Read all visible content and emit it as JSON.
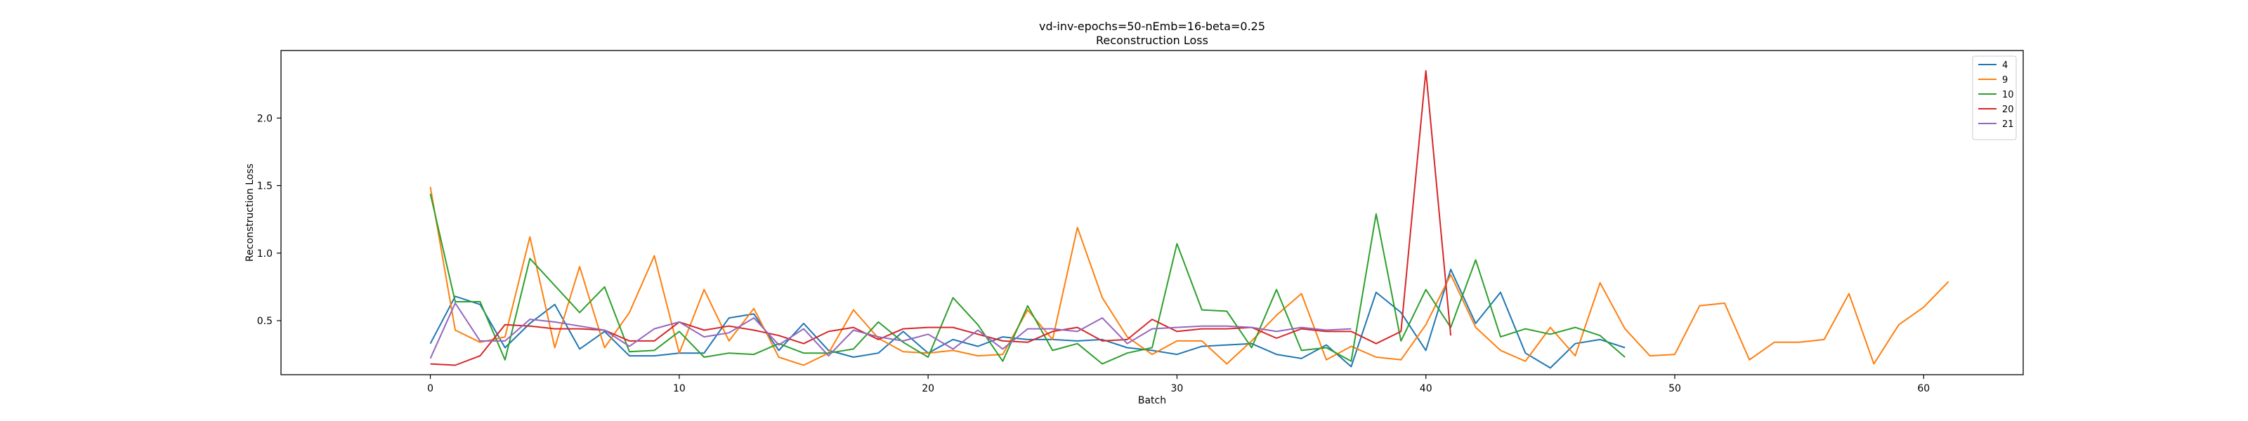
{
  "chart_data": {
    "type": "line",
    "title": "vd-inv-epochs=50-nEmb=16-beta=0.25",
    "subtitle": "Reconstruction Loss",
    "xlabel": "Batch",
    "ylabel": "Reconstruction Loss",
    "xlim": [
      -6,
      64
    ],
    "ylim": [
      0.1,
      2.5
    ],
    "xticks": [
      0,
      10,
      20,
      30,
      40,
      50,
      60
    ],
    "yticks": [
      0.5,
      1.0,
      1.5,
      2.0
    ],
    "ytick_labels": [
      "0.5",
      "1.0",
      "1.5",
      "2.0"
    ],
    "grid": false,
    "legend_position": "top-right",
    "series": [
      {
        "name": "4",
        "color": "#1f77b4",
        "values": [
          0.33,
          0.68,
          0.62,
          0.3,
          0.48,
          0.62,
          0.29,
          0.42,
          0.24,
          0.24,
          0.26,
          0.26,
          0.52,
          0.55,
          0.28,
          0.48,
          0.28,
          0.23,
          0.26,
          0.42,
          0.26,
          0.36,
          0.31,
          0.38,
          0.36,
          0.36,
          0.35,
          0.36,
          0.3,
          0.28,
          0.25,
          0.31,
          0.32,
          0.33,
          0.25,
          0.22,
          0.32,
          0.16,
          0.71,
          0.56,
          0.28,
          0.88,
          0.48,
          0.71,
          0.26,
          0.15,
          0.33,
          0.36,
          0.3
        ]
      },
      {
        "name": "9",
        "color": "#ff7f0e",
        "values": [
          1.49,
          0.43,
          0.34,
          0.38,
          1.12,
          0.3,
          0.9,
          0.3,
          0.56,
          0.98,
          0.26,
          0.73,
          0.35,
          0.59,
          0.23,
          0.17,
          0.26,
          0.58,
          0.37,
          0.27,
          0.26,
          0.28,
          0.24,
          0.25,
          0.58,
          0.36,
          1.19,
          0.67,
          0.38,
          0.25,
          0.35,
          0.35,
          0.18,
          0.35,
          0.54,
          0.7,
          0.21,
          0.31,
          0.23,
          0.21,
          0.47,
          0.84,
          0.45,
          0.28,
          0.2,
          0.45,
          0.24,
          0.78,
          0.44,
          0.24,
          0.25,
          0.61,
          0.63,
          0.21,
          0.34,
          0.34,
          0.36,
          0.7,
          0.18,
          0.47,
          0.6,
          0.79
        ]
      },
      {
        "name": "10",
        "color": "#2ca02c",
        "values": [
          1.44,
          0.64,
          0.64,
          0.21,
          0.96,
          0.76,
          0.56,
          0.75,
          0.27,
          0.28,
          0.42,
          0.23,
          0.26,
          0.25,
          0.33,
          0.26,
          0.26,
          0.29,
          0.49,
          0.34,
          0.23,
          0.67,
          0.47,
          0.2,
          0.61,
          0.28,
          0.33,
          0.18,
          0.26,
          0.3,
          1.07,
          0.58,
          0.57,
          0.3,
          0.73,
          0.28,
          0.3,
          0.2,
          1.29,
          0.35,
          0.73,
          0.45,
          0.95,
          0.38,
          0.44,
          0.4,
          0.45,
          0.39,
          0.23
        ]
      },
      {
        "name": "20",
        "color": "#d62728",
        "values": [
          0.18,
          0.17,
          0.24,
          0.47,
          0.46,
          0.44,
          0.44,
          0.43,
          0.35,
          0.35,
          0.49,
          0.43,
          0.46,
          0.43,
          0.39,
          0.33,
          0.42,
          0.45,
          0.36,
          0.44,
          0.45,
          0.45,
          0.4,
          0.35,
          0.34,
          0.42,
          0.45,
          0.35,
          0.36,
          0.51,
          0.42,
          0.44,
          0.44,
          0.45,
          0.37,
          0.44,
          0.42,
          0.42,
          0.33,
          0.42,
          2.35,
          0.39
        ]
      },
      {
        "name": "21",
        "color": "#9467bd",
        "values": [
          0.22,
          0.63,
          0.35,
          0.35,
          0.51,
          0.49,
          0.46,
          0.43,
          0.31,
          0.44,
          0.49,
          0.38,
          0.41,
          0.52,
          0.32,
          0.44,
          0.24,
          0.43,
          0.38,
          0.35,
          0.4,
          0.29,
          0.43,
          0.29,
          0.44,
          0.44,
          0.42,
          0.52,
          0.33,
          0.44,
          0.45,
          0.46,
          0.46,
          0.45,
          0.42,
          0.45,
          0.43,
          0.44
        ]
      }
    ]
  }
}
